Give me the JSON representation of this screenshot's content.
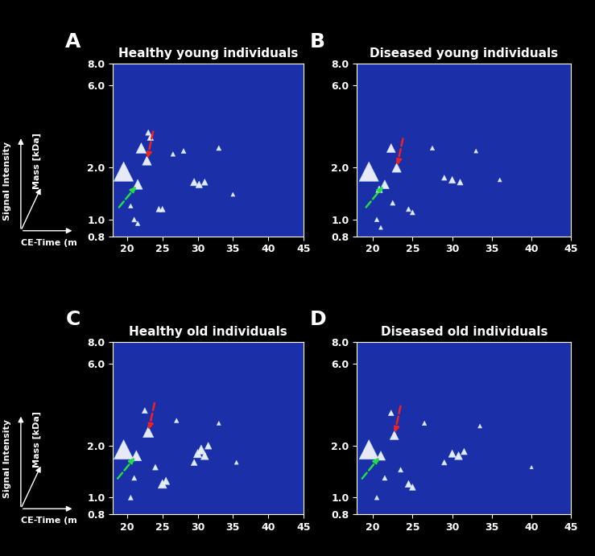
{
  "chart_data": [
    {
      "type": "scatter",
      "panel": "A",
      "title": "Healthy young individuals",
      "color": "#ffffff",
      "marker": "^",
      "xlim": [
        18,
        45
      ],
      "xticks": [
        20,
        25,
        30,
        35,
        40,
        45
      ],
      "ylim": [
        0.8,
        8.0
      ],
      "yticks": [
        0.8,
        1.0,
        2.0,
        6.0,
        8.0
      ],
      "log": "y",
      "x": [
        19.5,
        21.5,
        22.0,
        22.8,
        23.3,
        21.0,
        24.5,
        25.0,
        29.5,
        30.2,
        31.0,
        28.0,
        33.0,
        20.5,
        26.5,
        35.0,
        21.5,
        23.0
      ],
      "values": [
        1.9,
        1.6,
        2.6,
        2.2,
        3.0,
        1.0,
        1.15,
        1.15,
        1.65,
        1.6,
        1.65,
        2.5,
        2.6,
        1.2,
        2.4,
        1.4,
        0.95,
        3.2
      ],
      "intensity": [
        100,
        25,
        28,
        22,
        10,
        6,
        8,
        8,
        14,
        12,
        10,
        6,
        6,
        5,
        5,
        4,
        5,
        8
      ],
      "arrows": [
        {
          "color": "#22dd44",
          "x": 21.5,
          "mass": 1.6
        },
        {
          "color": "#ee2222",
          "x": 22.8,
          "mass": 2.2
        }
      ]
    },
    {
      "type": "scatter",
      "panel": "B",
      "title": "Diseased young individuals",
      "color": "#ffffff",
      "marker": "^",
      "xlim": [
        18,
        45
      ],
      "xticks": [
        20,
        25,
        30,
        35,
        40,
        45
      ],
      "ylim": [
        0.8,
        8.0
      ],
      "yticks": [
        0.8,
        1.0,
        2.0,
        6.0,
        8.0
      ],
      "log": "y",
      "x": [
        19.5,
        21.5,
        22.3,
        23.0,
        20.8,
        24.5,
        25.0,
        30.0,
        31.0,
        29.0,
        27.5,
        22.5,
        20.5,
        33.0,
        36.0,
        21.0
      ],
      "values": [
        1.9,
        1.6,
        2.6,
        2.0,
        1.5,
        1.15,
        1.1,
        1.7,
        1.65,
        1.75,
        2.6,
        1.25,
        1.0,
        2.5,
        1.7,
        0.9
      ],
      "intensity": [
        100,
        20,
        20,
        22,
        12,
        6,
        6,
        12,
        9,
        7,
        5,
        6,
        5,
        4,
        4,
        4
      ],
      "arrows": [
        {
          "color": "#22dd44",
          "x": 21.5,
          "mass": 1.6
        },
        {
          "color": "#ee2222",
          "x": 23.0,
          "mass": 2.0
        }
      ]
    },
    {
      "type": "scatter",
      "panel": "C",
      "title": "Healthy old individuals",
      "color": "#ffffff",
      "marker": "^",
      "xlim": [
        18,
        45
      ],
      "xticks": [
        20,
        25,
        30,
        35,
        40,
        45
      ],
      "ylim": [
        0.8,
        8.0
      ],
      "yticks": [
        0.8,
        1.0,
        2.0,
        6.0,
        8.0
      ],
      "log": "y",
      "x": [
        19.5,
        21.3,
        23.0,
        22.5,
        25.0,
        25.5,
        30.0,
        30.5,
        31.0,
        31.5,
        29.5,
        24.0,
        20.5,
        21.0,
        27.0,
        33.0,
        35.5
      ],
      "values": [
        1.9,
        1.75,
        2.4,
        3.2,
        1.2,
        1.25,
        1.8,
        1.9,
        1.75,
        2.0,
        1.6,
        1.5,
        1.0,
        1.3,
        2.8,
        2.7,
        1.6
      ],
      "intensity": [
        100,
        28,
        30,
        8,
        20,
        14,
        18,
        22,
        16,
        12,
        10,
        8,
        6,
        6,
        5,
        4,
        4
      ],
      "arrows": [
        {
          "color": "#22dd44",
          "x": 21.3,
          "mass": 1.75
        },
        {
          "color": "#ee2222",
          "x": 23.0,
          "mass": 2.4
        }
      ]
    },
    {
      "type": "scatter",
      "panel": "D",
      "title": "Diseased old individuals",
      "color": "#ffffff",
      "marker": "^",
      "xlim": [
        18,
        45
      ],
      "xticks": [
        20,
        25,
        30,
        35,
        40,
        45
      ],
      "ylim": [
        0.8,
        8.0
      ],
      "yticks": [
        0.8,
        1.0,
        2.0,
        6.0,
        8.0
      ],
      "log": "y",
      "x": [
        19.5,
        21.0,
        22.7,
        22.3,
        24.5,
        25.0,
        30.0,
        30.8,
        31.5,
        29.0,
        26.5,
        20.5,
        21.5,
        33.5,
        40.0,
        23.5
      ],
      "values": [
        1.9,
        1.75,
        2.3,
        3.1,
        1.2,
        1.15,
        1.8,
        1.75,
        1.85,
        1.6,
        2.7,
        1.0,
        1.3,
        2.6,
        1.5,
        1.45
      ],
      "intensity": [
        100,
        22,
        20,
        8,
        12,
        10,
        14,
        16,
        10,
        7,
        5,
        5,
        6,
        4,
        3,
        6
      ],
      "arrows": [
        {
          "color": "#22dd44",
          "x": 21.0,
          "mass": 1.75
        },
        {
          "color": "#ee2222",
          "x": 22.7,
          "mass": 2.3
        }
      ]
    }
  ],
  "axis_legend": {
    "vertical": "Signal Intensity",
    "diagonal": "Mass [kDa]",
    "horizontal": "CE-Time (m"
  }
}
